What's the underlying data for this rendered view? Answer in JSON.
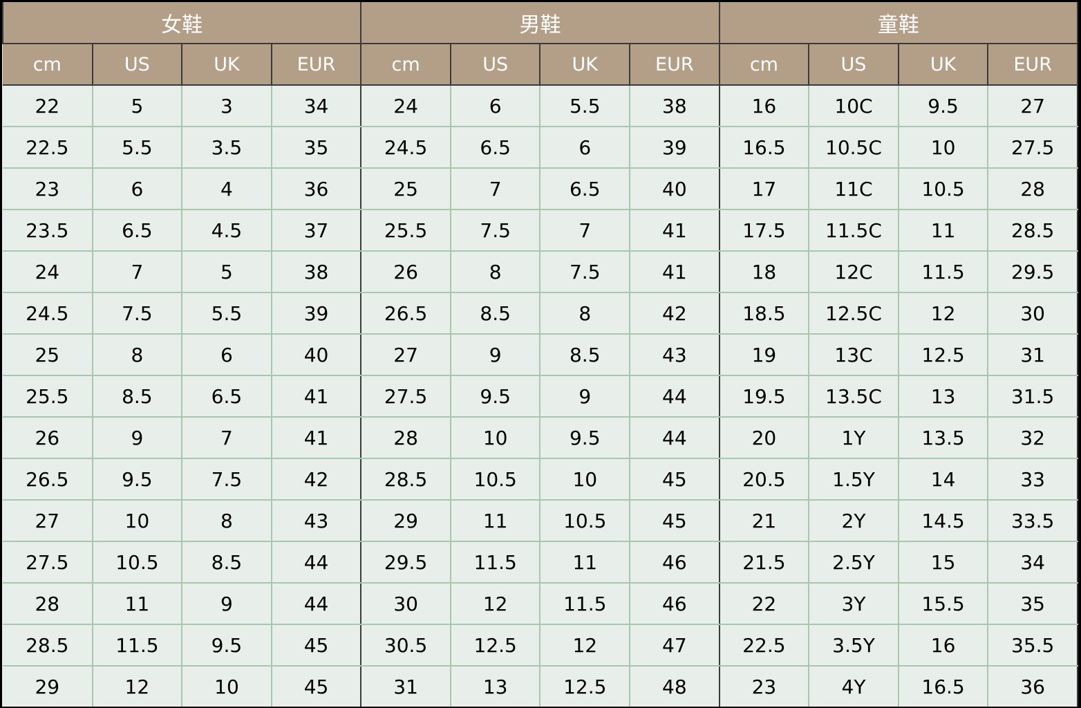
{
  "groups": [
    {
      "title": "女鞋",
      "columns": [
        "cm",
        "US",
        "UK",
        "EUR"
      ]
    },
    {
      "title": "男鞋",
      "columns": [
        "cm",
        "US",
        "UK",
        "EUR"
      ]
    },
    {
      "title": "童鞋",
      "columns": [
        "cm",
        "US",
        "UK",
        "EUR"
      ]
    }
  ],
  "rows": [
    [
      "22",
      "5",
      "3",
      "34",
      "24",
      "6",
      "5.5",
      "38",
      "16",
      "10C",
      "9.5",
      "27"
    ],
    [
      "22.5",
      "5.5",
      "3.5",
      "35",
      "24.5",
      "6.5",
      "6",
      "39",
      "16.5",
      "10.5C",
      "10",
      "27.5"
    ],
    [
      "23",
      "6",
      "4",
      "36",
      "25",
      "7",
      "6.5",
      "40",
      "17",
      "11C",
      "10.5",
      "28"
    ],
    [
      "23.5",
      "6.5",
      "4.5",
      "37",
      "25.5",
      "7.5",
      "7",
      "41",
      "17.5",
      "11.5C",
      "11",
      "28.5"
    ],
    [
      "24",
      "7",
      "5",
      "38",
      "26",
      "8",
      "7.5",
      "41",
      "18",
      "12C",
      "11.5",
      "29.5"
    ],
    [
      "24.5",
      "7.5",
      "5.5",
      "39",
      "26.5",
      "8.5",
      "8",
      "42",
      "18.5",
      "12.5C",
      "12",
      "30"
    ],
    [
      "25",
      "8",
      "6",
      "40",
      "27",
      "9",
      "8.5",
      "43",
      "19",
      "13C",
      "12.5",
      "31"
    ],
    [
      "25.5",
      "8.5",
      "6.5",
      "41",
      "27.5",
      "9.5",
      "9",
      "44",
      "19.5",
      "13.5C",
      "13",
      "31.5"
    ],
    [
      "26",
      "9",
      "7",
      "41",
      "28",
      "10",
      "9.5",
      "44",
      "20",
      "1Y",
      "13.5",
      "32"
    ],
    [
      "26.5",
      "9.5",
      "7.5",
      "42",
      "28.5",
      "10.5",
      "10",
      "45",
      "20.5",
      "1.5Y",
      "14",
      "33"
    ],
    [
      "27",
      "10",
      "8",
      "43",
      "29",
      "11",
      "10.5",
      "45",
      "21",
      "2Y",
      "14.5",
      "33.5"
    ],
    [
      "27.5",
      "10.5",
      "8.5",
      "44",
      "29.5",
      "11.5",
      "11",
      "46",
      "21.5",
      "2.5Y",
      "15",
      "34"
    ],
    [
      "28",
      "11",
      "9",
      "44",
      "30",
      "12",
      "11.5",
      "46",
      "22",
      "3Y",
      "15.5",
      "35"
    ],
    [
      "28.5",
      "11.5",
      "9.5",
      "45",
      "30.5",
      "12.5",
      "12",
      "47",
      "22.5",
      "3.5Y",
      "16",
      "35.5"
    ],
    [
      "29",
      "12",
      "10",
      "45",
      "31",
      "13",
      "12.5",
      "48",
      "23",
      "4Y",
      "16.5",
      "36"
    ]
  ],
  "colors": {
    "header_bg": "#b39e87",
    "header_text": "#ffffff",
    "body_bg": "#e8eee9",
    "grid_line": "#a9c7ad",
    "group_divider": "#3a3a3a"
  }
}
